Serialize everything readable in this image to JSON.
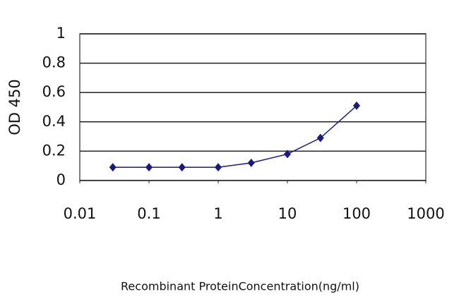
{
  "chart_data": {
    "type": "line",
    "x_label": "Recombinant ProteinConcentration(ng/ml)",
    "y_label": "OD 450",
    "x": [
      0.03,
      0.1,
      0.3,
      1,
      3,
      10,
      30,
      100
    ],
    "series": [
      {
        "color": "#1a1a80",
        "values": [
          0.09,
          0.09,
          0.09,
          0.09,
          0.12,
          0.18,
          0.29,
          0.51
        ]
      }
    ],
    "xscale": "log",
    "xlim": [
      0.01,
      1000
    ],
    "xticks": [
      0.01,
      0.1,
      1,
      10,
      100,
      1000
    ],
    "ylim": [
      0,
      1
    ],
    "yticks": [
      0,
      0.2,
      0.4,
      0.6,
      0.8,
      1
    ],
    "grid": true
  }
}
